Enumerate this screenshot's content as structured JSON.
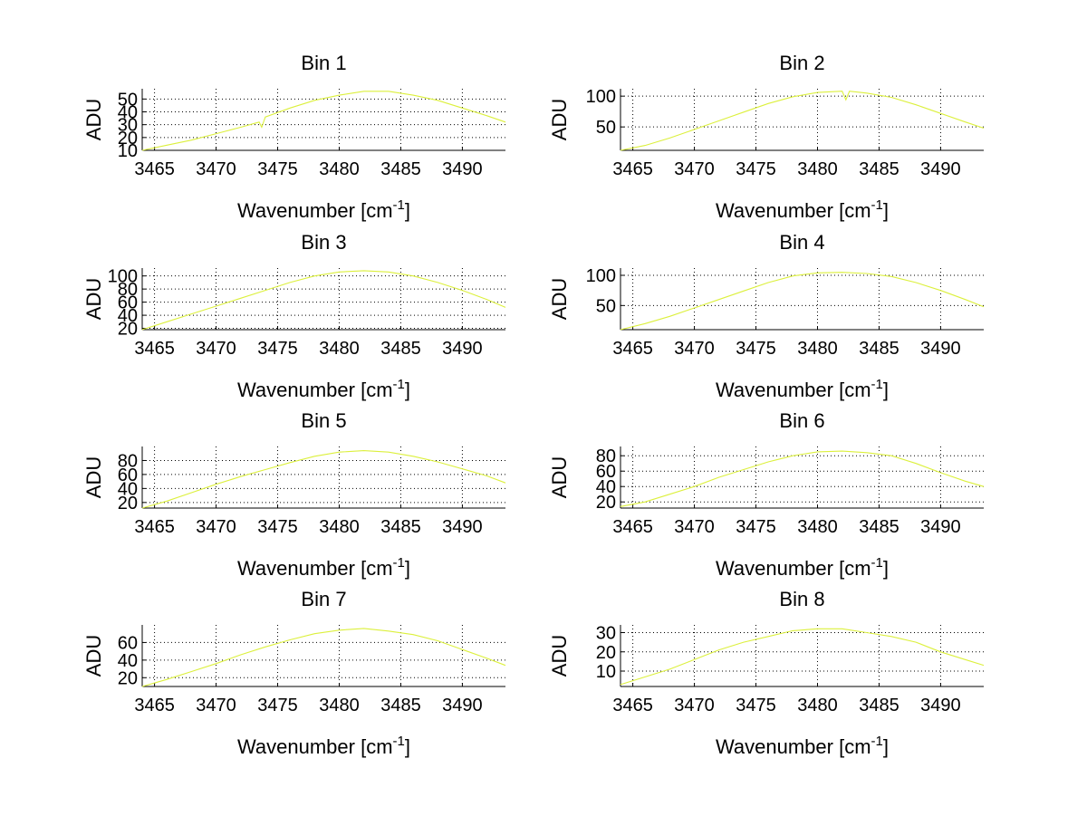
{
  "figure": {
    "line_color": "#dcf03c"
  },
  "chart_data": [
    {
      "type": "line",
      "title": "Bin 1",
      "xlabel": "Wavenumber [cm",
      "xlabel_sup": "-1",
      "xlabel_close": "]",
      "ylabel": "ADU",
      "xlim": [
        3464,
        3493.5
      ],
      "ylim": [
        10,
        58
      ],
      "xticks": [
        "3465",
        "3470",
        "3475",
        "3480",
        "3485",
        "3490"
      ],
      "yticks": [
        "10",
        "20",
        "30",
        "40",
        "50"
      ],
      "grid": true,
      "series": [
        {
          "name": "Bin 1",
          "x": [
            3464,
            3466,
            3468,
            3470,
            3472,
            3473.5,
            3473.7,
            3474,
            3476,
            3478,
            3480,
            3482,
            3484,
            3486,
            3488,
            3490,
            3492,
            3493.5
          ],
          "y": [
            10,
            14,
            18,
            23,
            28,
            32,
            28,
            36,
            43,
            49,
            53,
            56,
            56,
            53,
            49,
            43,
            37,
            32
          ]
        }
      ]
    },
    {
      "type": "line",
      "title": "Bin 2",
      "xlabel": "Wavenumber [cm",
      "xlabel_sup": "-1",
      "xlabel_close": "]",
      "ylabel": "ADU",
      "xlim": [
        3464,
        3493.5
      ],
      "ylim": [
        12,
        112
      ],
      "xticks": [
        "3465",
        "3470",
        "3475",
        "3480",
        "3485",
        "3490"
      ],
      "yticks": [
        "50",
        "100"
      ],
      "grid": true,
      "series": [
        {
          "name": "Bin 2",
          "x": [
            3464,
            3466,
            3468,
            3470,
            3472,
            3474,
            3476,
            3478,
            3480,
            3482,
            3482.3,
            3482.6,
            3484,
            3486,
            3488,
            3490,
            3492,
            3493.5
          ],
          "y": [
            12,
            20,
            32,
            46,
            60,
            74,
            88,
            99,
            106,
            108,
            94,
            108,
            105,
            98,
            86,
            72,
            58,
            48
          ]
        }
      ]
    },
    {
      "type": "line",
      "title": "Bin 3",
      "xlabel": "Wavenumber [cm",
      "xlabel_sup": "-1",
      "xlabel_close": "]",
      "ylabel": "ADU",
      "xlim": [
        3464,
        3493.5
      ],
      "ylim": [
        18,
        112
      ],
      "xticks": [
        "3465",
        "3470",
        "3475",
        "3480",
        "3485",
        "3490"
      ],
      "yticks": [
        "20",
        "40",
        "60",
        "80",
        "100"
      ],
      "grid": true,
      "series": [
        {
          "name": "Bin 3",
          "x": [
            3464,
            3466,
            3468,
            3470,
            3472,
            3474,
            3476,
            3478,
            3480,
            3482,
            3484,
            3486,
            3488,
            3490,
            3492,
            3493.5
          ],
          "y": [
            18,
            30,
            42,
            54,
            66,
            78,
            90,
            100,
            106,
            108,
            106,
            100,
            90,
            78,
            64,
            52
          ]
        }
      ]
    },
    {
      "type": "line",
      "title": "Bin 4",
      "xlabel": "Wavenumber [cm",
      "xlabel_sup": "-1",
      "xlabel_close": "]",
      "ylabel": "ADU",
      "xlim": [
        3464,
        3493.5
      ],
      "ylim": [
        10,
        112
      ],
      "xticks": [
        "3465",
        "3470",
        "3475",
        "3480",
        "3485",
        "3490"
      ],
      "yticks": [
        "50",
        "100"
      ],
      "grid": true,
      "series": [
        {
          "name": "Bin 4",
          "x": [
            3464,
            3466,
            3468,
            3470,
            3472,
            3474,
            3476,
            3478,
            3480,
            3482,
            3484,
            3486,
            3488,
            3490,
            3492,
            3493.5
          ],
          "y": [
            10,
            20,
            32,
            46,
            60,
            74,
            88,
            99,
            104,
            105,
            103,
            98,
            88,
            75,
            60,
            48
          ]
        }
      ]
    },
    {
      "type": "line",
      "title": "Bin 5",
      "xlabel": "Wavenumber [cm",
      "xlabel_sup": "-1",
      "xlabel_close": "]",
      "ylabel": "ADU",
      "xlim": [
        3464,
        3493.5
      ],
      "ylim": [
        12,
        100
      ],
      "xticks": [
        "3465",
        "3470",
        "3475",
        "3480",
        "3485",
        "3490"
      ],
      "yticks": [
        "20",
        "40",
        "60",
        "80"
      ],
      "grid": true,
      "series": [
        {
          "name": "Bin 5",
          "x": [
            3464,
            3466,
            3468,
            3470,
            3472,
            3474,
            3476,
            3478,
            3480,
            3482,
            3484,
            3486,
            3488,
            3490,
            3492,
            3493.5
          ],
          "y": [
            12,
            22,
            34,
            46,
            57,
            67,
            77,
            86,
            92,
            94,
            92,
            86,
            78,
            68,
            58,
            48
          ]
        }
      ]
    },
    {
      "type": "line",
      "title": "Bin 6",
      "xlabel": "Wavenumber [cm",
      "xlabel_sup": "-1",
      "xlabel_close": "]",
      "ylabel": "ADU",
      "xlim": [
        3464,
        3493.5
      ],
      "ylim": [
        12,
        92
      ],
      "xticks": [
        "3465",
        "3470",
        "3475",
        "3480",
        "3485",
        "3490"
      ],
      "yticks": [
        "20",
        "40",
        "60",
        "80"
      ],
      "grid": true,
      "series": [
        {
          "name": "Bin 6",
          "x": [
            3464,
            3466,
            3468,
            3470,
            3472,
            3474,
            3476,
            3478,
            3480,
            3482,
            3484,
            3486,
            3488,
            3490,
            3492,
            3493.5
          ],
          "y": [
            14,
            20,
            30,
            40,
            52,
            62,
            72,
            80,
            85,
            86,
            84,
            80,
            70,
            58,
            47,
            40
          ]
        }
      ]
    },
    {
      "type": "line",
      "title": "Bin 7",
      "xlabel": "Wavenumber [cm",
      "xlabel_sup": "-1",
      "xlabel_close": "]",
      "ylabel": "ADU",
      "xlim": [
        3464,
        3493.5
      ],
      "ylim": [
        10,
        80
      ],
      "xticks": [
        "3465",
        "3470",
        "3475",
        "3480",
        "3485",
        "3490"
      ],
      "yticks": [
        "20",
        "40",
        "60"
      ],
      "grid": true,
      "series": [
        {
          "name": "Bin 7",
          "x": [
            3464,
            3466,
            3468,
            3470,
            3472,
            3474,
            3476,
            3478,
            3480,
            3482,
            3484,
            3486,
            3488,
            3490,
            3492,
            3493.5
          ],
          "y": [
            10,
            18,
            27,
            36,
            46,
            55,
            63,
            70,
            74,
            76,
            73,
            69,
            62,
            52,
            42,
            34
          ]
        }
      ]
    },
    {
      "type": "line",
      "title": "Bin 8",
      "xlabel": "Wavenumber [cm",
      "xlabel_sup": "-1",
      "xlabel_close": "]",
      "ylabel": "ADU",
      "xlim": [
        3464,
        3493.5
      ],
      "ylim": [
        2,
        34
      ],
      "xticks": [
        "3465",
        "3470",
        "3475",
        "3480",
        "3485",
        "3490"
      ],
      "yticks": [
        "10",
        "20",
        "30"
      ],
      "grid": true,
      "series": [
        {
          "name": "Bin 8",
          "x": [
            3464,
            3466,
            3468,
            3470,
            3472,
            3474,
            3476,
            3478,
            3480,
            3482,
            3484,
            3486,
            3488,
            3490,
            3492,
            3493.5
          ],
          "y": [
            3,
            7,
            11,
            16,
            21,
            25,
            28,
            31,
            32,
            32,
            30,
            28,
            25,
            20,
            16,
            13
          ]
        }
      ]
    }
  ]
}
